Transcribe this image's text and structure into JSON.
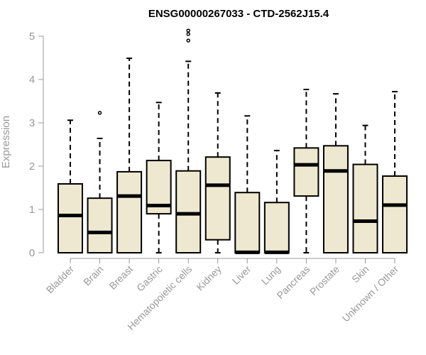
{
  "chart_data": {
    "type": "boxplot",
    "title": "ENSG00000267033 - CTD-2562J15.4",
    "xlabel": "",
    "ylabel": "Expression",
    "ylim": [
      0,
      5
    ],
    "yticks": [
      0,
      1,
      2,
      3,
      4,
      5
    ],
    "grid": false,
    "box_fill": "#EDE8CF",
    "stroke_color": "#000000",
    "axis_color": "#999999",
    "categories": [
      "Bladder",
      "Brain",
      "Breast",
      "Gastric",
      "Hematopoietic cells",
      "Kidney",
      "Liver",
      "Lung",
      "Pancreas",
      "Prostate",
      "Skin",
      "Unknown / Other"
    ],
    "boxes": [
      {
        "category": "Bladder",
        "min": 0,
        "q1": 0,
        "median": 0.86,
        "q3": 1.59,
        "max": 3.06,
        "outliers": []
      },
      {
        "category": "Brain",
        "min": 0,
        "q1": 0,
        "median": 0.47,
        "q3": 1.26,
        "max": 2.64,
        "outliers": [
          3.23
        ]
      },
      {
        "category": "Breast",
        "min": 0,
        "q1": 0,
        "median": 1.31,
        "q3": 1.87,
        "max": 4.49,
        "outliers": []
      },
      {
        "category": "Gastric",
        "min": 0,
        "q1": 0.9,
        "median": 1.09,
        "q3": 2.13,
        "max": 3.47,
        "outliers": []
      },
      {
        "category": "Hematopoietic cells",
        "min": 0,
        "q1": 0,
        "median": 0.9,
        "q3": 1.89,
        "max": 4.42,
        "outliers": [
          4.9,
          5.05,
          5.13
        ]
      },
      {
        "category": "Kidney",
        "min": 0,
        "q1": 0.3,
        "median": 1.56,
        "q3": 2.21,
        "max": 3.69,
        "outliers": []
      },
      {
        "category": "Liver",
        "min": 0,
        "q1": 0,
        "median": 0.01,
        "q3": 1.39,
        "max": 3.16,
        "outliers": []
      },
      {
        "category": "Lung",
        "min": 0,
        "q1": 0,
        "median": 0.01,
        "q3": 1.16,
        "max": 2.36,
        "outliers": []
      },
      {
        "category": "Pancreas",
        "min": 0,
        "q1": 1.31,
        "median": 2.03,
        "q3": 2.42,
        "max": 3.77,
        "outliers": []
      },
      {
        "category": "Prostate",
        "min": 0,
        "q1": 0,
        "median": 1.89,
        "q3": 2.47,
        "max": 3.67,
        "outliers": []
      },
      {
        "category": "Skin",
        "min": 0,
        "q1": 0,
        "median": 0.73,
        "q3": 2.04,
        "max": 2.94,
        "outliers": []
      },
      {
        "category": "Unknown / Other",
        "min": 0,
        "q1": 0,
        "median": 1.1,
        "q3": 1.77,
        "max": 3.72,
        "outliers": []
      }
    ]
  }
}
